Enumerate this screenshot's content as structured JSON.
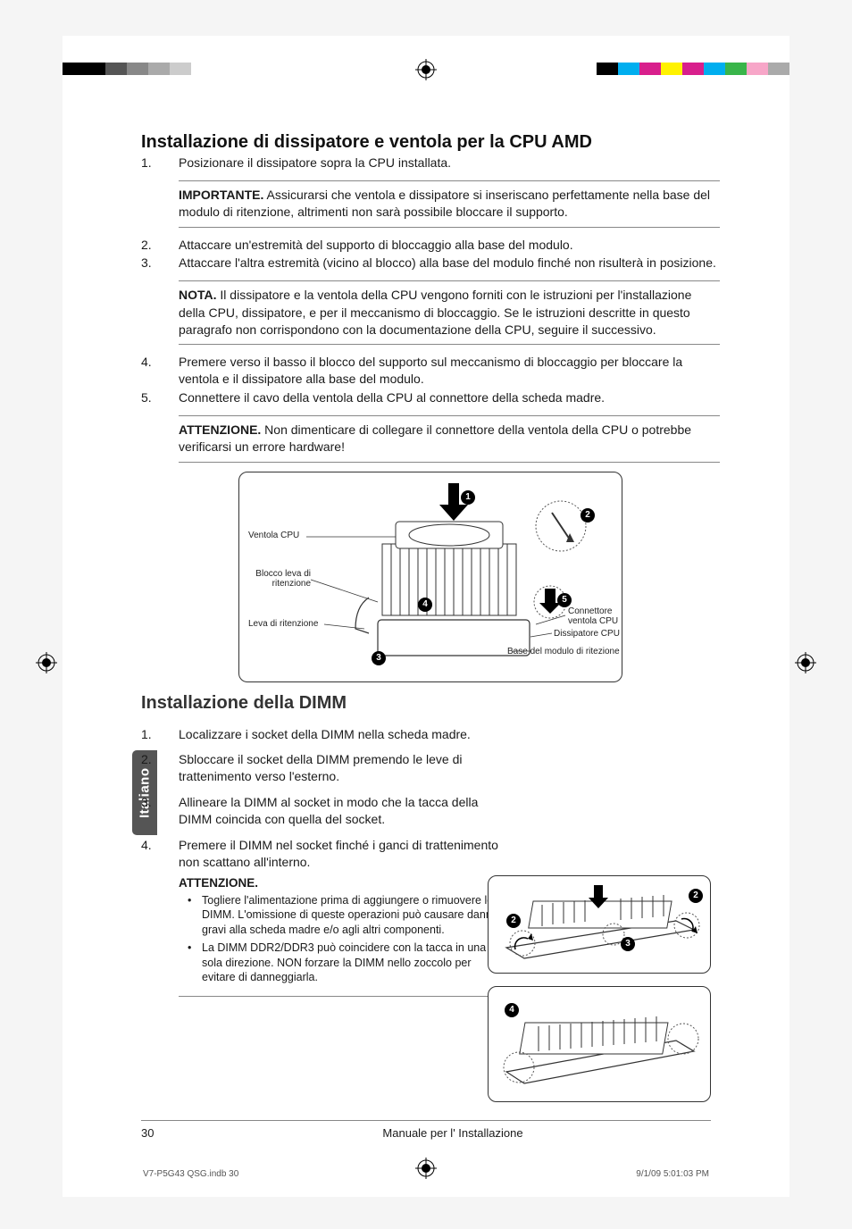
{
  "printmarks": {
    "left_swatches": [
      "#000000",
      "#000000",
      "#555555",
      "#888888",
      "#aaaaaa",
      "#cccccc"
    ],
    "right_swatches": [
      "#000000",
      "#00aeef",
      "#d81f8c",
      "#fff200",
      "#d81f8c",
      "#00aeef",
      "#39b54a",
      "#f7a6c8",
      "#aaaaaa"
    ]
  },
  "section1": {
    "title": "Installazione di dissipatore e ventola per la CPU AMD",
    "steps": [
      {
        "n": "1.",
        "t": "Posizionare il dissipatore sopra la CPU installata."
      },
      {
        "n": "2.",
        "t": "Attaccare un'estremità del supporto di bloccaggio alla base del modulo."
      },
      {
        "n": "3.",
        "t": "Attaccare l'altra estremità (vicino al blocco) alla base del modulo finché non risulterà in posizione."
      },
      {
        "n": "4.",
        "t": "Premere verso il basso il blocco del supporto sul meccanismo di bloccaggio per bloccare la ventola e il dissipatore alla base del modulo."
      },
      {
        "n": "5.",
        "t": "Connettere il cavo della ventola della CPU al connettore della scheda madre."
      }
    ],
    "note1": {
      "lead": "IMPORTANTE.",
      "body": " Assicurarsi che ventola e dissipatore si inseriscano perfettamente nella base del modulo di ritenzione, altrimenti non sarà possibile bloccare il supporto."
    },
    "note2": {
      "lead": "NOTA.",
      "body": " Il dissipatore e la ventola della CPU vengono forniti con le istruzioni per l'installazione della CPU, dissipatore, e per il meccanismo di bloccaggio. Se le istruzioni descritte in questo paragrafo non corrispondono con la documentazione della CPU, seguire il successivo."
    },
    "note3": {
      "lead": "ATTENZIONE.",
      "body": " Non dimenticare di collegare il connettore della ventola della CPU o potrebbe verificarsi un errore hardware!"
    }
  },
  "diagram": {
    "labels": {
      "fan": "Ventola CPU",
      "lock": "Blocco leva di ritenzione",
      "lever": "Leva di ritenzione",
      "connector": "Connettore ventola CPU",
      "heatsink": "Dissipatore CPU",
      "base": "Base del modulo di ritezione"
    },
    "callouts": [
      "1",
      "2",
      "3",
      "4",
      "5"
    ]
  },
  "section2": {
    "title": "Installazione della DIMM",
    "steps": [
      {
        "n": "1.",
        "t": "Localizzare i socket della DIMM nella scheda madre."
      },
      {
        "n": "2.",
        "t": "Sbloccare il socket della DIMM premendo le leve di trattenimento verso l'esterno."
      },
      {
        "n": "3.",
        "t": "Allineare la DIMM al socket in modo che la tacca della DIMM coincida con quella del socket."
      },
      {
        "n": "4.",
        "t": "Premere il DIMM nel socket finché i ganci di trattenimento non scattano all'interno."
      }
    ],
    "attn": {
      "lead": "ATTENZIONE.",
      "items": [
        "Togliere l'alimentazione prima di aggiungere o rimuovere le DIMM. L'omissione di queste operazioni può causare danni gravi alla scheda madre e/o agli altri componenti.",
        "La DIMM DDR2/DDR3 può coincidere con la tacca in una sola direzione. NON forzare la DIMM nello zoccolo per evitare di danneggiarla."
      ]
    },
    "small_callouts_top": [
      "2",
      "2",
      "3"
    ],
    "small_callouts_bot": [
      "4"
    ]
  },
  "lang_tab": "Italiano",
  "footer": {
    "page": "30",
    "title": "Manuale per l' Installazione"
  },
  "meta": {
    "file": "V7-P5G43 QSG.indb   30",
    "date": "9/1/09   5:01:03 PM"
  }
}
